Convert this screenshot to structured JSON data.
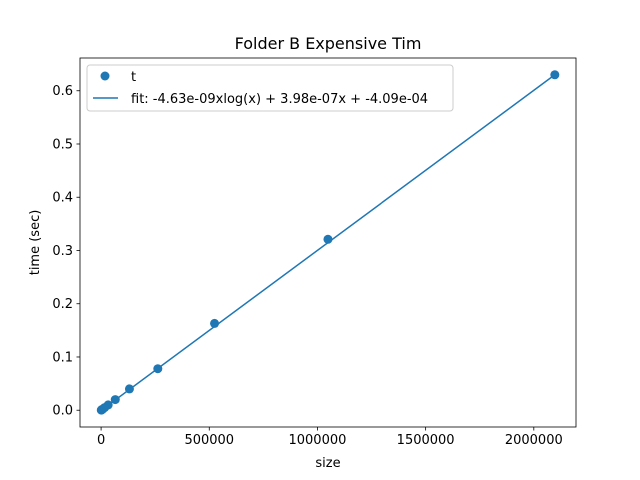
{
  "chart_data": {
    "type": "scatter",
    "title": "Folder B Expensive Tim",
    "xlabel": "size",
    "ylabel": "time (sec)",
    "xlim": [
      -97500,
      2195000
    ],
    "ylim": [
      -0.0315,
      0.6615
    ],
    "xticks": [
      0,
      500000,
      1000000,
      1500000,
      2000000
    ],
    "xtick_labels": [
      "0",
      "500000",
      "1000000",
      "1500000",
      "2000000"
    ],
    "yticks": [
      0.0,
      0.1,
      0.2,
      0.3,
      0.4,
      0.5,
      0.6
    ],
    "ytick_labels": [
      "0.0",
      "0.1",
      "0.2",
      "0.3",
      "0.4",
      "0.5",
      "0.6"
    ],
    "grid": false,
    "legend_position": "top-left",
    "series": [
      {
        "name": "t",
        "kind": "scatter",
        "color": "#1f77b4",
        "x": [
          1024,
          2048,
          4096,
          8192,
          16384,
          32768,
          65536,
          131072,
          262144,
          524288,
          1048576,
          2097152
        ],
        "y": [
          0.0003,
          0.0006,
          0.0012,
          0.0024,
          0.005,
          0.01,
          0.02,
          0.04,
          0.078,
          0.163,
          0.321,
          0.63
        ]
      },
      {
        "name": "fit: -4.63e-09xlog(x) + 3.98e-07x + -4.09e-04",
        "kind": "line",
        "color": "#1f77b4",
        "x": [
          0,
          2097152
        ],
        "y": [
          -0.0004,
          0.63
        ]
      }
    ]
  }
}
